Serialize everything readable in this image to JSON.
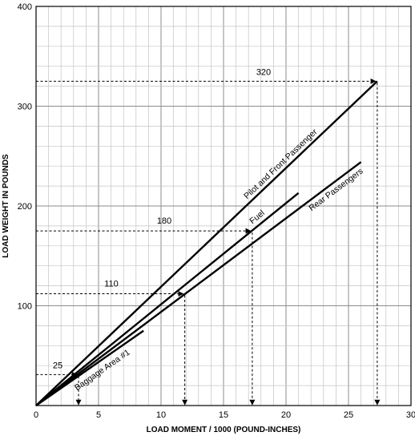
{
  "chart_data": {
    "type": "line",
    "title": "",
    "xlabel": "LOAD MOMENT / 1000 (POUND-INCHES)",
    "ylabel": "LOAD WEIGHT IN POUNDS",
    "xlim": [
      0,
      30
    ],
    "ylim": [
      0,
      400
    ],
    "x_ticks": [
      0,
      5,
      10,
      15,
      20,
      25,
      30
    ],
    "y_ticks": [
      100,
      200,
      300,
      400
    ],
    "grid": true,
    "series": [
      {
        "name": "Pilot and Front Passenger",
        "x": [
          0,
          27.3
        ],
        "y": [
          0,
          325
        ]
      },
      {
        "name": "Fuel",
        "x": [
          0,
          21
        ],
        "y": [
          0,
          213
        ]
      },
      {
        "name": "Rear Passengers",
        "x": [
          0,
          26
        ],
        "y": [
          0,
          244
        ]
      },
      {
        "name": "Baggage Area #1",
        "x": [
          0,
          8.6
        ],
        "y": [
          0,
          75
        ]
      }
    ],
    "annotations": [
      {
        "text": "320",
        "weight": 325,
        "moment": 27.3
      },
      {
        "text": "180",
        "weight": 175,
        "moment": 17.3
      },
      {
        "text": "110",
        "weight": 112,
        "moment": 11.9
      },
      {
        "text": "25",
        "weight": 31,
        "moment": 3.4
      }
    ]
  }
}
